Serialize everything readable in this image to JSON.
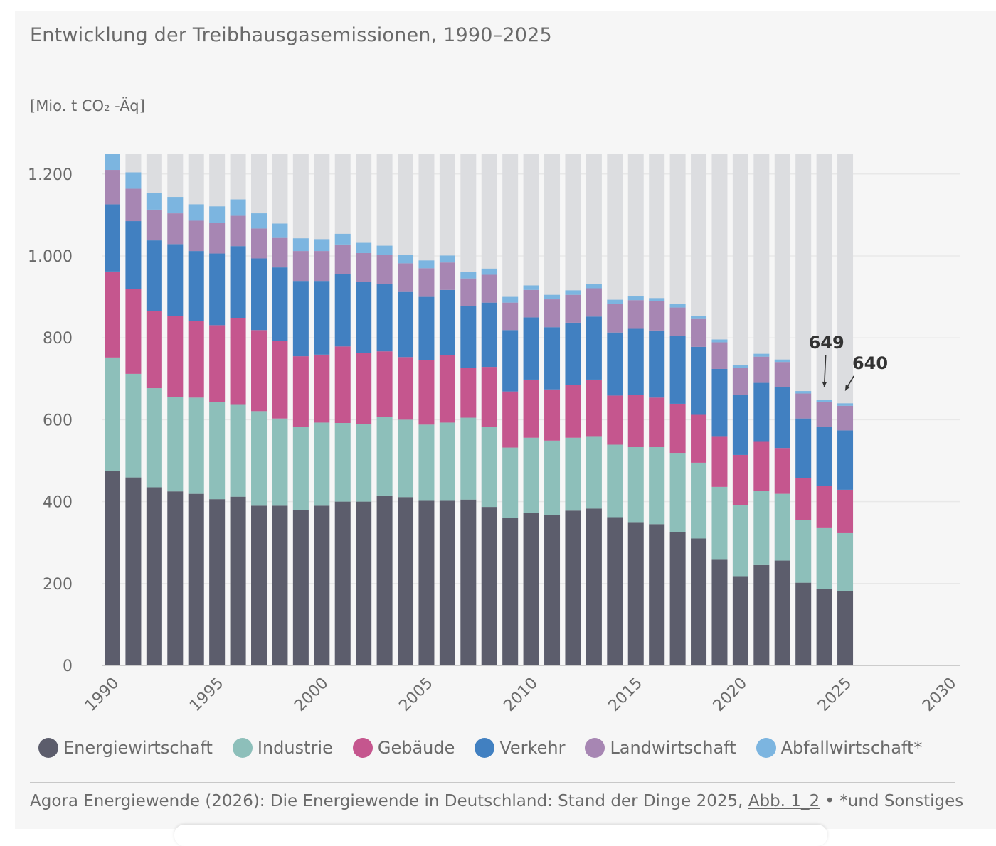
{
  "title": "Entwicklung der Treibhausgasemissionen, 1990–2025",
  "unit_label": "[Mio. t CO₂ -Äq]",
  "source": {
    "text": "Agora Energiewende (2026): Die Energiewende in Deutschland: Stand der Dinge 2025,",
    "link": "Abb. 1_2",
    "note": "• *und Sonstiges"
  },
  "colors": {
    "background_bar": "#dcdde0",
    "grid": "#e8e8e8",
    "axis_text": "#6a6a6a",
    "annotation": "#333333"
  },
  "chart_data": {
    "type": "bar",
    "stacked": true,
    "title": "Entwicklung der Treibhausgasemissionen, 1990–2025",
    "ylabel": "[Mio. t CO₂ -Äq]",
    "xlabel": "",
    "ylim": [
      0,
      1250
    ],
    "xlim": [
      1990,
      2030
    ],
    "yticks": [
      0,
      200,
      400,
      600,
      800,
      1000,
      1200
    ],
    "ytick_labels": [
      "0",
      "200",
      "400",
      "600",
      "800",
      "1.000",
      "1.200"
    ],
    "xticks": [
      1990,
      1995,
      2000,
      2005,
      2010,
      2015,
      2020,
      2025,
      2030
    ],
    "grid": true,
    "background_bar_value": 1250,
    "categories": [
      1990,
      1991,
      1992,
      1993,
      1994,
      1995,
      1996,
      1997,
      1998,
      1999,
      2000,
      2001,
      2002,
      2003,
      2004,
      2005,
      2006,
      2007,
      2008,
      2009,
      2010,
      2011,
      2012,
      2013,
      2014,
      2015,
      2016,
      2017,
      2018,
      2019,
      2020,
      2021,
      2022,
      2023,
      2024,
      2025
    ],
    "series": [
      {
        "name": "Energiewirtschaft",
        "color": "#5c5d6c",
        "values": [
          474,
          459,
          435,
          425,
          419,
          406,
          412,
          390,
          390,
          380,
          390,
          400,
          400,
          415,
          411,
          402,
          402,
          405,
          387,
          361,
          372,
          367,
          378,
          383,
          362,
          350,
          345,
          325,
          310,
          258,
          218,
          245,
          256,
          202,
          186,
          182
        ]
      },
      {
        "name": "Industrie",
        "color": "#8dbfba",
        "values": [
          278,
          253,
          242,
          231,
          235,
          237,
          226,
          231,
          213,
          202,
          203,
          192,
          190,
          191,
          189,
          186,
          191,
          200,
          196,
          171,
          184,
          182,
          178,
          177,
          177,
          183,
          188,
          194,
          185,
          178,
          173,
          181,
          163,
          153,
          151,
          141
        ]
      },
      {
        "name": "Gebäude",
        "color": "#c5568e",
        "values": [
          210,
          208,
          189,
          197,
          187,
          188,
          210,
          198,
          189,
          173,
          166,
          187,
          173,
          161,
          153,
          157,
          164,
          121,
          146,
          137,
          142,
          125,
          129,
          138,
          120,
          127,
          121,
          120,
          117,
          124,
          123,
          120,
          112,
          103,
          102,
          106
        ]
      },
      {
        "name": "Verkehr",
        "color": "#4180c1",
        "values": [
          164,
          165,
          172,
          176,
          171,
          175,
          176,
          175,
          180,
          184,
          180,
          176,
          173,
          165,
          159,
          155,
          160,
          152,
          157,
          150,
          152,
          152,
          152,
          154,
          154,
          162,
          164,
          166,
          166,
          164,
          146,
          144,
          148,
          145,
          143,
          145
        ]
      },
      {
        "name": "Landwirtschaft",
        "color": "#a786b3",
        "values": [
          84,
          79,
          75,
          75,
          74,
          75,
          74,
          73,
          72,
          73,
          73,
          73,
          71,
          70,
          70,
          70,
          67,
          67,
          68,
          67,
          67,
          68,
          68,
          69,
          70,
          70,
          71,
          69,
          68,
          65,
          66,
          64,
          62,
          61,
          61,
          60
        ]
      },
      {
        "name": "Abfallwirtschaft*",
        "color": "#7cb5e0",
        "values": [
          40,
          40,
          40,
          40,
          40,
          40,
          40,
          37,
          35,
          31,
          29,
          26,
          25,
          23,
          21,
          19,
          17,
          16,
          15,
          14,
          11,
          11,
          11,
          11,
          10,
          9,
          8,
          8,
          7,
          7,
          7,
          7,
          6,
          6,
          6,
          6
        ]
      }
    ],
    "totals": [
      1250,
      1204,
      1153,
      1144,
      1126,
      1121,
      1138,
      1104,
      1079,
      1043,
      1041,
      1054,
      1032,
      1025,
      1003,
      989,
      1001,
      961,
      969,
      900,
      928,
      905,
      916,
      932,
      893,
      901,
      897,
      882,
      853,
      796,
      733,
      761,
      747,
      670,
      649,
      640
    ],
    "annotations": [
      {
        "year": 2024,
        "value": 649,
        "label": "649"
      },
      {
        "year": 2025,
        "value": 640,
        "label": "640"
      }
    ]
  },
  "legend": [
    {
      "label": "Energiewirtschaft",
      "color": "#5c5d6c"
    },
    {
      "label": "Industrie",
      "color": "#8dbfba"
    },
    {
      "label": "Gebäude",
      "color": "#c5568e"
    },
    {
      "label": "Verkehr",
      "color": "#4180c1"
    },
    {
      "label": "Landwirtschaft",
      "color": "#a786b3"
    },
    {
      "label": "Abfallwirtschaft*",
      "color": "#7cb5e0"
    }
  ]
}
